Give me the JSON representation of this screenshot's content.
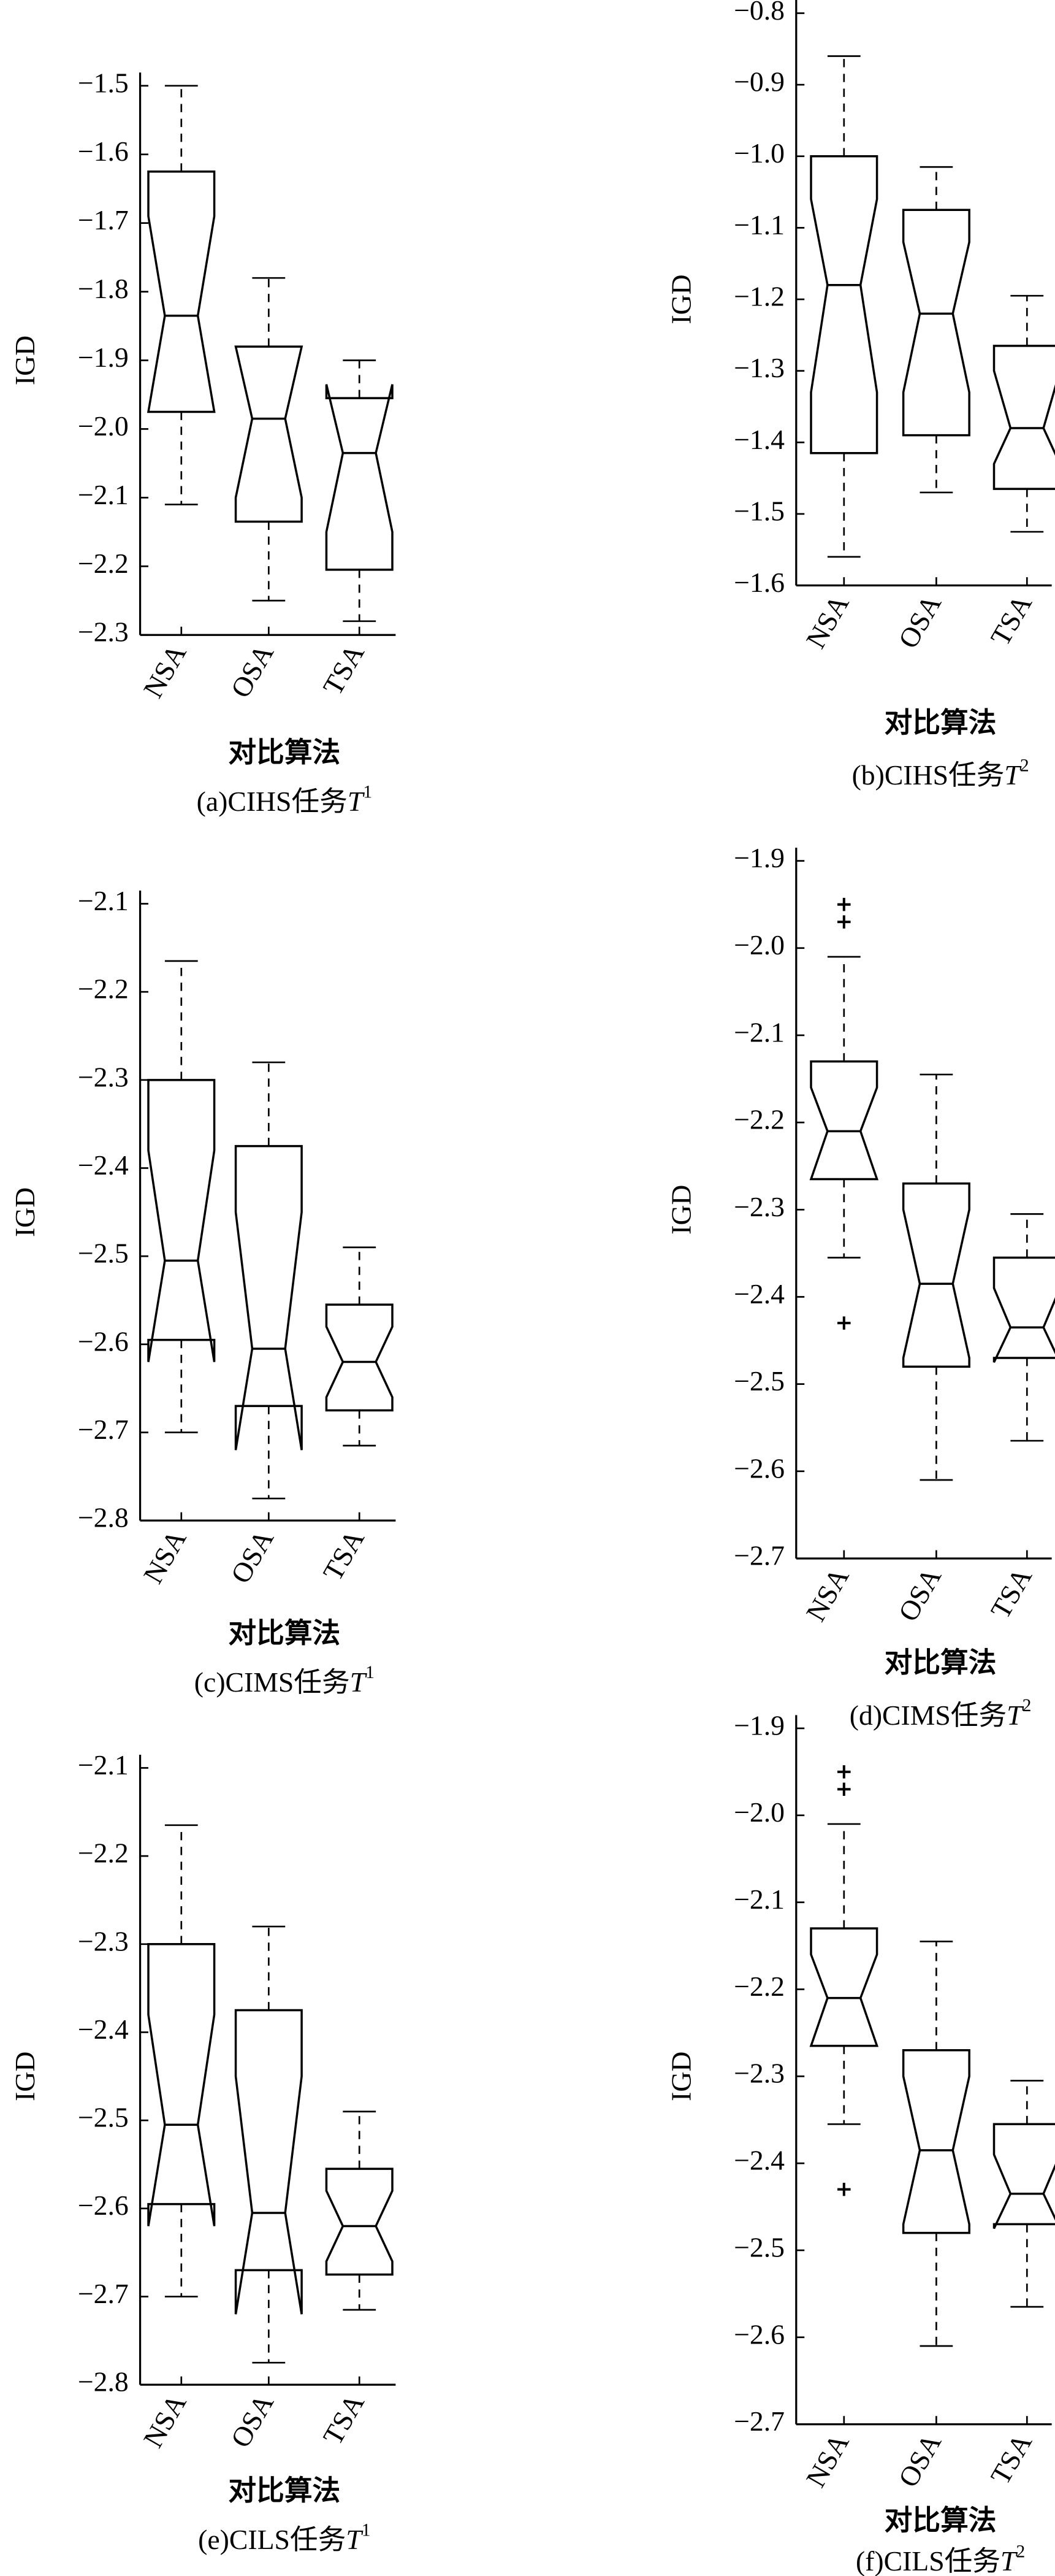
{
  "chart_data": [
    {
      "type": "box",
      "title": [
        "(a)CIHS任务",
        "T",
        "1"
      ],
      "x_label": "对比算法",
      "y_label": "IGD",
      "color": "#000000",
      "categories": [
        "NSA",
        "OSA",
        "TSA"
      ],
      "ylim": [
        -2.3,
        -1.5
      ],
      "yticks": [
        {
          "value": -2.3,
          "label": "−2.3"
        },
        {
          "value": -2.2,
          "label": "−2.2"
        },
        {
          "value": -2.1,
          "label": "−2.1"
        },
        {
          "value": -2.0,
          "label": "−2.0"
        },
        {
          "value": -1.9,
          "label": "−1.9"
        },
        {
          "value": -1.8,
          "label": "−1.8"
        },
        {
          "value": -1.7,
          "label": "−1.7"
        },
        {
          "value": -1.6,
          "label": "−1.6"
        },
        {
          "value": -1.5,
          "label": "−1.5"
        }
      ],
      "boxes": [
        {
          "whisker_low": -2.11,
          "q1": -1.975,
          "notch_low": -1.975,
          "median": -1.835,
          "notch_high": -1.69,
          "q3": -1.625,
          "whisker_high": -1.5,
          "outliers": []
        },
        {
          "whisker_low": -2.25,
          "q1": -2.135,
          "notch_low": -2.1,
          "median": -1.985,
          "notch_high": -1.88,
          "q3": -1.88,
          "whisker_high": -1.78,
          "outliers": []
        },
        {
          "whisker_low": -2.28,
          "q1": -2.205,
          "notch_low": -2.15,
          "median": -2.035,
          "notch_high": -1.935,
          "q3": -1.955,
          "whisker_high": -1.9,
          "outliers": []
        }
      ]
    },
    {
      "type": "box",
      "title": [
        "(b)CIHS任务",
        "T",
        "2"
      ],
      "x_label": "对比算法",
      "y_label": "IGD",
      "color": "#000000",
      "categories": [
        "NSA",
        "OSA",
        "TSA"
      ],
      "ylim": [
        -1.6,
        -0.8
      ],
      "yticks": [
        {
          "value": -1.6,
          "label": "−1.6"
        },
        {
          "value": -1.5,
          "label": "−1.5"
        },
        {
          "value": -1.4,
          "label": "−1.4"
        },
        {
          "value": -1.3,
          "label": "−1.3"
        },
        {
          "value": -1.2,
          "label": "−1.2"
        },
        {
          "value": -1.1,
          "label": "−1.1"
        },
        {
          "value": -1.0,
          "label": "−1.0"
        },
        {
          "value": -0.9,
          "label": "−0.9"
        },
        {
          "value": -0.8,
          "label": "−0.8"
        }
      ],
      "boxes": [
        {
          "whisker_low": -1.56,
          "q1": -1.415,
          "notch_low": -1.33,
          "median": -1.18,
          "notch_high": -1.06,
          "q3": -1.0,
          "whisker_high": -0.86,
          "outliers": []
        },
        {
          "whisker_low": -1.47,
          "q1": -1.39,
          "notch_low": -1.33,
          "median": -1.22,
          "notch_high": -1.12,
          "q3": -1.075,
          "whisker_high": -1.015,
          "outliers": []
        },
        {
          "whisker_low": -1.525,
          "q1": -1.465,
          "notch_low": -1.43,
          "median": -1.38,
          "notch_high": -1.3,
          "q3": -1.265,
          "whisker_high": -1.195,
          "outliers": []
        }
      ]
    },
    {
      "type": "box",
      "title": [
        "(c)CIMS任务",
        "T",
        "1"
      ],
      "x_label": "对比算法",
      "y_label": "IGD",
      "color": "#000000",
      "categories": [
        "NSA",
        "OSA",
        "TSA"
      ],
      "ylim": [
        -2.8,
        -2.1
      ],
      "yticks": [
        {
          "value": -2.8,
          "label": "−2.8"
        },
        {
          "value": -2.7,
          "label": "−2.7"
        },
        {
          "value": -2.6,
          "label": "−2.6"
        },
        {
          "value": -2.5,
          "label": "−2.5"
        },
        {
          "value": -2.4,
          "label": "−2.4"
        },
        {
          "value": -2.3,
          "label": "−2.3"
        },
        {
          "value": -2.2,
          "label": "−2.2"
        },
        {
          "value": -2.1,
          "label": "−2.1"
        }
      ],
      "boxes": [
        {
          "whisker_low": -2.7,
          "q1": -2.595,
          "notch_low": -2.62,
          "median": -2.505,
          "notch_high": -2.38,
          "q3": -2.3,
          "whisker_high": -2.165,
          "outliers": []
        },
        {
          "whisker_low": -2.775,
          "q1": -2.67,
          "notch_low": -2.72,
          "median": -2.605,
          "notch_high": -2.45,
          "q3": -2.375,
          "whisker_high": -2.28,
          "outliers": []
        },
        {
          "whisker_low": -2.715,
          "q1": -2.675,
          "notch_low": -2.66,
          "median": -2.62,
          "notch_high": -2.58,
          "q3": -2.555,
          "whisker_high": -2.49,
          "outliers": []
        }
      ]
    },
    {
      "type": "box",
      "title": [
        "(d)CIMS任务",
        "T",
        "2"
      ],
      "x_label": "对比算法",
      "y_label": "IGD",
      "color": "#000000",
      "categories": [
        "NSA",
        "OSA",
        "TSA"
      ],
      "ylim": [
        -2.7,
        -1.9
      ],
      "yticks": [
        {
          "value": -2.7,
          "label": "−2.7"
        },
        {
          "value": -2.6,
          "label": "−2.6"
        },
        {
          "value": -2.5,
          "label": "−2.5"
        },
        {
          "value": -2.4,
          "label": "−2.4"
        },
        {
          "value": -2.3,
          "label": "−2.3"
        },
        {
          "value": -2.2,
          "label": "−2.2"
        },
        {
          "value": -2.1,
          "label": "−2.1"
        },
        {
          "value": -2.0,
          "label": "−2.0"
        },
        {
          "value": -1.9,
          "label": "−1.9"
        }
      ],
      "boxes": [
        {
          "whisker_low": -2.355,
          "q1": -2.265,
          "notch_low": -2.265,
          "median": -2.21,
          "notch_high": -2.16,
          "q3": -2.13,
          "whisker_high": -2.01,
          "outliers": [
            -1.95,
            -1.97,
            -2.43
          ]
        },
        {
          "whisker_low": -2.61,
          "q1": -2.48,
          "notch_low": -2.47,
          "median": -2.385,
          "notch_high": -2.3,
          "q3": -2.27,
          "whisker_high": -2.145,
          "outliers": []
        },
        {
          "whisker_low": -2.565,
          "q1": -2.47,
          "notch_low": -2.475,
          "median": -2.435,
          "notch_high": -2.39,
          "q3": -2.355,
          "whisker_high": -2.305,
          "outliers": []
        }
      ]
    },
    {
      "type": "box",
      "title": [
        "(e)CILS任务",
        "T",
        "1"
      ],
      "x_label": "对比算法",
      "y_label": "IGD",
      "color": "#000000",
      "categories": [
        "NSA",
        "OSA",
        "TSA"
      ],
      "ylim": [
        -2.8,
        -2.1
      ],
      "yticks": [
        {
          "value": -2.8,
          "label": "−2.8"
        },
        {
          "value": -2.7,
          "label": "−2.7"
        },
        {
          "value": -2.6,
          "label": "−2.6"
        },
        {
          "value": -2.5,
          "label": "−2.5"
        },
        {
          "value": -2.4,
          "label": "−2.4"
        },
        {
          "value": -2.3,
          "label": "−2.3"
        },
        {
          "value": -2.2,
          "label": "−2.2"
        },
        {
          "value": -2.1,
          "label": "−2.1"
        }
      ],
      "boxes": [
        {
          "whisker_low": -2.7,
          "q1": -2.595,
          "notch_low": -2.62,
          "median": -2.505,
          "notch_high": -2.38,
          "q3": -2.3,
          "whisker_high": -2.165,
          "outliers": []
        },
        {
          "whisker_low": -2.775,
          "q1": -2.67,
          "notch_low": -2.72,
          "median": -2.605,
          "notch_high": -2.45,
          "q3": -2.375,
          "whisker_high": -2.28,
          "outliers": []
        },
        {
          "whisker_low": -2.715,
          "q1": -2.675,
          "notch_low": -2.66,
          "median": -2.62,
          "notch_high": -2.58,
          "q3": -2.555,
          "whisker_high": -2.49,
          "outliers": []
        }
      ]
    },
    {
      "type": "box",
      "title": [
        "(f)CILS任务",
        "T",
        "2"
      ],
      "x_label": "对比算法",
      "y_label": "IGD",
      "color": "#000000",
      "categories": [
        "NSA",
        "OSA",
        "TSA"
      ],
      "ylim": [
        -2.7,
        -1.9
      ],
      "yticks": [
        {
          "value": -2.7,
          "label": "−2.7"
        },
        {
          "value": -2.6,
          "label": "−2.6"
        },
        {
          "value": -2.5,
          "label": "−2.5"
        },
        {
          "value": -2.4,
          "label": "−2.4"
        },
        {
          "value": -2.3,
          "label": "−2.3"
        },
        {
          "value": -2.2,
          "label": "−2.2"
        },
        {
          "value": -2.1,
          "label": "−2.1"
        },
        {
          "value": -2.0,
          "label": "−2.0"
        },
        {
          "value": -1.9,
          "label": "−1.9"
        }
      ],
      "boxes": [
        {
          "whisker_low": -2.355,
          "q1": -2.265,
          "notch_low": -2.265,
          "median": -2.21,
          "notch_high": -2.16,
          "q3": -2.13,
          "whisker_high": -2.01,
          "outliers": [
            -1.95,
            -1.97,
            -2.43
          ]
        },
        {
          "whisker_low": -2.61,
          "q1": -2.48,
          "notch_low": -2.47,
          "median": -2.385,
          "notch_high": -2.3,
          "q3": -2.27,
          "whisker_high": -2.145,
          "outliers": []
        },
        {
          "whisker_low": -2.565,
          "q1": -2.47,
          "notch_low": -2.475,
          "median": -2.435,
          "notch_high": -2.39,
          "q3": -2.355,
          "whisker_high": -2.305,
          "outliers": []
        }
      ]
    }
  ]
}
